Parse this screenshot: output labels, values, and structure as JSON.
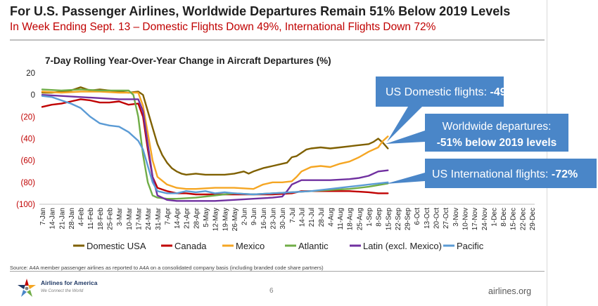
{
  "header": {
    "title": "For U.S. Passenger Airlines, Worldwide Departures Remain 51% Below 2019 Levels",
    "subtitle": "In Week Ending Sept. 13 – Domestic Flights Down 49%, International Flights Down 72%"
  },
  "footer": {
    "source": "Source: A4A member passenger airlines as reported to A4A on a consolidated company basis (including branded code share partners)",
    "page_number": "6",
    "website": "airlines.org",
    "logo_name": "Airlines for America",
    "logo_tagline": "We Connect the World"
  },
  "callouts": {
    "domestic": {
      "label": "US Domestic flights: ",
      "value": "-49%"
    },
    "worldwide": {
      "line1": "Worldwide departures:",
      "line2": "-51% below 2019 levels"
    },
    "international": {
      "label": "US International flights: ",
      "value": "-72%"
    }
  },
  "colors": {
    "domestic": "#7f6000",
    "canada": "#c00000",
    "mexico": "#f5a623",
    "atlantic": "#70ad47",
    "latin": "#7030a0",
    "pacific": "#5b9bd5",
    "callout": "#4a86c8"
  },
  "chart_data": {
    "type": "line",
    "title": "7-Day Rolling Year-Over-Year Change in Aircraft Departures (%)",
    "ylim": [
      -100,
      20
    ],
    "yticks": [
      20,
      0,
      -20,
      -40,
      -60,
      -80,
      -100
    ],
    "ytick_labels": [
      "20",
      "0",
      "(20)",
      "(40)",
      "(60)",
      "(80)",
      "(100)"
    ],
    "xtick_labels": [
      "7-Jan",
      "14-Jan",
      "21-Jan",
      "28-Jan",
      "4-Feb",
      "11-Feb",
      "18-Feb",
      "25-Feb",
      "3-Mar",
      "10-Mar",
      "17-Mar",
      "24-Mar",
      "31-Mar",
      "7-Apr",
      "14-Apr",
      "21-Apr",
      "28-Apr",
      "5-May",
      "12-May",
      "19-May",
      "26-May",
      "2-Jun",
      "9-Jun",
      "16-Jun",
      "23-Jun",
      "30-Jun",
      "7-Jul",
      "14-Jul",
      "21-Jul",
      "28-Jul",
      "4-Aug",
      "11-Aug",
      "18-Aug",
      "25-Aug",
      "1-Sep",
      "8-Sep",
      "15-Sep",
      "22-Sep",
      "29-Sep",
      "6-Oct",
      "13-Oct",
      "20-Oct",
      "27-Oct",
      "3-Nov",
      "10-Nov",
      "17-Nov",
      "24-Nov",
      "1-Dec",
      "8-Dec",
      "15-Dec",
      "22-Dec",
      "29-Dec"
    ],
    "x_unit": "week index (0 = 7-Jan)",
    "legend_position": "bottom",
    "series": [
      {
        "name": "Domestic USA",
        "key": "domestic",
        "points": [
          [
            0,
            2
          ],
          [
            1,
            2
          ],
          [
            2,
            3
          ],
          [
            3,
            4
          ],
          [
            4,
            7
          ],
          [
            5,
            4
          ],
          [
            6,
            5
          ],
          [
            7,
            4
          ],
          [
            8,
            3
          ],
          [
            9,
            2
          ],
          [
            10,
            3
          ],
          [
            10.5,
            0
          ],
          [
            11,
            -15
          ],
          [
            11.5,
            -30
          ],
          [
            12,
            -45
          ],
          [
            12.5,
            -55
          ],
          [
            13,
            -62
          ],
          [
            13.5,
            -67
          ],
          [
            14,
            -70
          ],
          [
            14.5,
            -72
          ],
          [
            15,
            -73
          ],
          [
            16,
            -72
          ],
          [
            17,
            -73
          ],
          [
            18,
            -73
          ],
          [
            19,
            -73
          ],
          [
            20,
            -72
          ],
          [
            21,
            -70
          ],
          [
            21.5,
            -72
          ],
          [
            22,
            -70
          ],
          [
            23,
            -67
          ],
          [
            24,
            -65
          ],
          [
            25,
            -63
          ],
          [
            25.5,
            -62
          ],
          [
            26,
            -57
          ],
          [
            26.5,
            -56
          ],
          [
            27,
            -53
          ],
          [
            27.5,
            -50
          ],
          [
            28,
            -49
          ],
          [
            29,
            -48
          ],
          [
            30,
            -49
          ],
          [
            31,
            -48
          ],
          [
            32,
            -47
          ],
          [
            33,
            -46
          ],
          [
            34,
            -45
          ],
          [
            34.5,
            -43
          ],
          [
            35,
            -40
          ],
          [
            35.5,
            -44
          ],
          [
            36,
            -49
          ]
        ]
      },
      {
        "name": "Canada",
        "key": "canada",
        "points": [
          [
            0,
            -11
          ],
          [
            1,
            -9
          ],
          [
            2,
            -8
          ],
          [
            3,
            -6
          ],
          [
            4,
            -4
          ],
          [
            5,
            -5
          ],
          [
            6,
            -7
          ],
          [
            7,
            -7
          ],
          [
            8,
            -6
          ],
          [
            9,
            -9
          ],
          [
            10,
            -8
          ],
          [
            10.5,
            -20
          ],
          [
            11,
            -50
          ],
          [
            11.5,
            -75
          ],
          [
            12,
            -85
          ],
          [
            13,
            -88
          ],
          [
            14,
            -90
          ],
          [
            15,
            -90
          ],
          [
            16,
            -91
          ],
          [
            18,
            -91
          ],
          [
            20,
            -91
          ],
          [
            22,
            -91
          ],
          [
            24,
            -91
          ],
          [
            26,
            -90
          ],
          [
            27,
            -88
          ],
          [
            28,
            -88
          ],
          [
            30,
            -88
          ],
          [
            32,
            -88
          ],
          [
            34,
            -89
          ],
          [
            35,
            -90
          ],
          [
            36,
            -90
          ]
        ]
      },
      {
        "name": "Mexico",
        "key": "mexico",
        "points": [
          [
            0,
            3
          ],
          [
            2,
            2
          ],
          [
            4,
            3
          ],
          [
            6,
            3
          ],
          [
            8,
            2
          ],
          [
            10,
            2
          ],
          [
            10.5,
            -10
          ],
          [
            11,
            -35
          ],
          [
            11.5,
            -60
          ],
          [
            12,
            -75
          ],
          [
            13,
            -82
          ],
          [
            14,
            -85
          ],
          [
            15,
            -86
          ],
          [
            16,
            -86
          ],
          [
            18,
            -85
          ],
          [
            20,
            -85
          ],
          [
            22,
            -86
          ],
          [
            23,
            -82
          ],
          [
            24,
            -80
          ],
          [
            25,
            -80
          ],
          [
            26,
            -79
          ],
          [
            26.5,
            -75
          ],
          [
            27,
            -70
          ],
          [
            28,
            -66
          ],
          [
            29,
            -65
          ],
          [
            30,
            -66
          ],
          [
            31,
            -63
          ],
          [
            32,
            -61
          ],
          [
            33,
            -57
          ],
          [
            34,
            -52
          ],
          [
            35,
            -48
          ],
          [
            35.5,
            -42
          ],
          [
            36,
            -38
          ]
        ]
      },
      {
        "name": "Atlantic",
        "key": "atlantic",
        "points": [
          [
            0,
            5
          ],
          [
            2,
            4
          ],
          [
            4,
            5
          ],
          [
            6,
            4
          ],
          [
            8,
            4
          ],
          [
            9,
            4
          ],
          [
            9.5,
            0
          ],
          [
            10,
            -20
          ],
          [
            10.5,
            -55
          ],
          [
            11,
            -80
          ],
          [
            11.5,
            -92
          ],
          [
            12,
            -94
          ],
          [
            13,
            -95
          ],
          [
            14,
            -95
          ],
          [
            16,
            -94
          ],
          [
            18,
            -92
          ],
          [
            20,
            -90
          ],
          [
            22,
            -91
          ],
          [
            24,
            -90
          ],
          [
            26,
            -89
          ],
          [
            28,
            -88
          ],
          [
            30,
            -87
          ],
          [
            32,
            -86
          ],
          [
            34,
            -84
          ],
          [
            36,
            -81
          ]
        ]
      },
      {
        "name": "Latin (excl. Mexico)",
        "key": "latin",
        "points": [
          [
            0,
            0
          ],
          [
            2,
            -1
          ],
          [
            4,
            -2
          ],
          [
            6,
            -3
          ],
          [
            8,
            -4
          ],
          [
            10,
            -4
          ],
          [
            10.5,
            -15
          ],
          [
            11,
            -45
          ],
          [
            11.5,
            -75
          ],
          [
            12,
            -92
          ],
          [
            13,
            -96
          ],
          [
            14,
            -97
          ],
          [
            16,
            -97
          ],
          [
            18,
            -97
          ],
          [
            20,
            -96
          ],
          [
            22,
            -95
          ],
          [
            24,
            -94
          ],
          [
            25,
            -93
          ],
          [
            25.5,
            -88
          ],
          [
            26,
            -82
          ],
          [
            27,
            -78
          ],
          [
            28,
            -78
          ],
          [
            30,
            -78
          ],
          [
            32,
            -77
          ],
          [
            33,
            -76
          ],
          [
            34,
            -74
          ],
          [
            35,
            -70
          ],
          [
            36,
            -69
          ]
        ]
      },
      {
        "name": "Pacific",
        "key": "pacific",
        "points": [
          [
            0,
            -1
          ],
          [
            1,
            -2
          ],
          [
            2,
            -5
          ],
          [
            3,
            -8
          ],
          [
            4,
            -12
          ],
          [
            5,
            -20
          ],
          [
            6,
            -26
          ],
          [
            7,
            -28
          ],
          [
            8,
            -29
          ],
          [
            9,
            -34
          ],
          [
            10,
            -42
          ],
          [
            10.5,
            -50
          ],
          [
            11,
            -65
          ],
          [
            11.5,
            -80
          ],
          [
            12,
            -88
          ],
          [
            13,
            -90
          ],
          [
            14,
            -90
          ],
          [
            15,
            -88
          ],
          [
            16,
            -89
          ],
          [
            17,
            -88
          ],
          [
            18,
            -90
          ],
          [
            19,
            -89
          ],
          [
            20,
            -90
          ],
          [
            22,
            -91
          ],
          [
            24,
            -90
          ],
          [
            26,
            -89
          ],
          [
            28,
            -88
          ],
          [
            30,
            -86
          ],
          [
            32,
            -84
          ],
          [
            34,
            -82
          ],
          [
            36,
            -80
          ]
        ]
      }
    ]
  }
}
